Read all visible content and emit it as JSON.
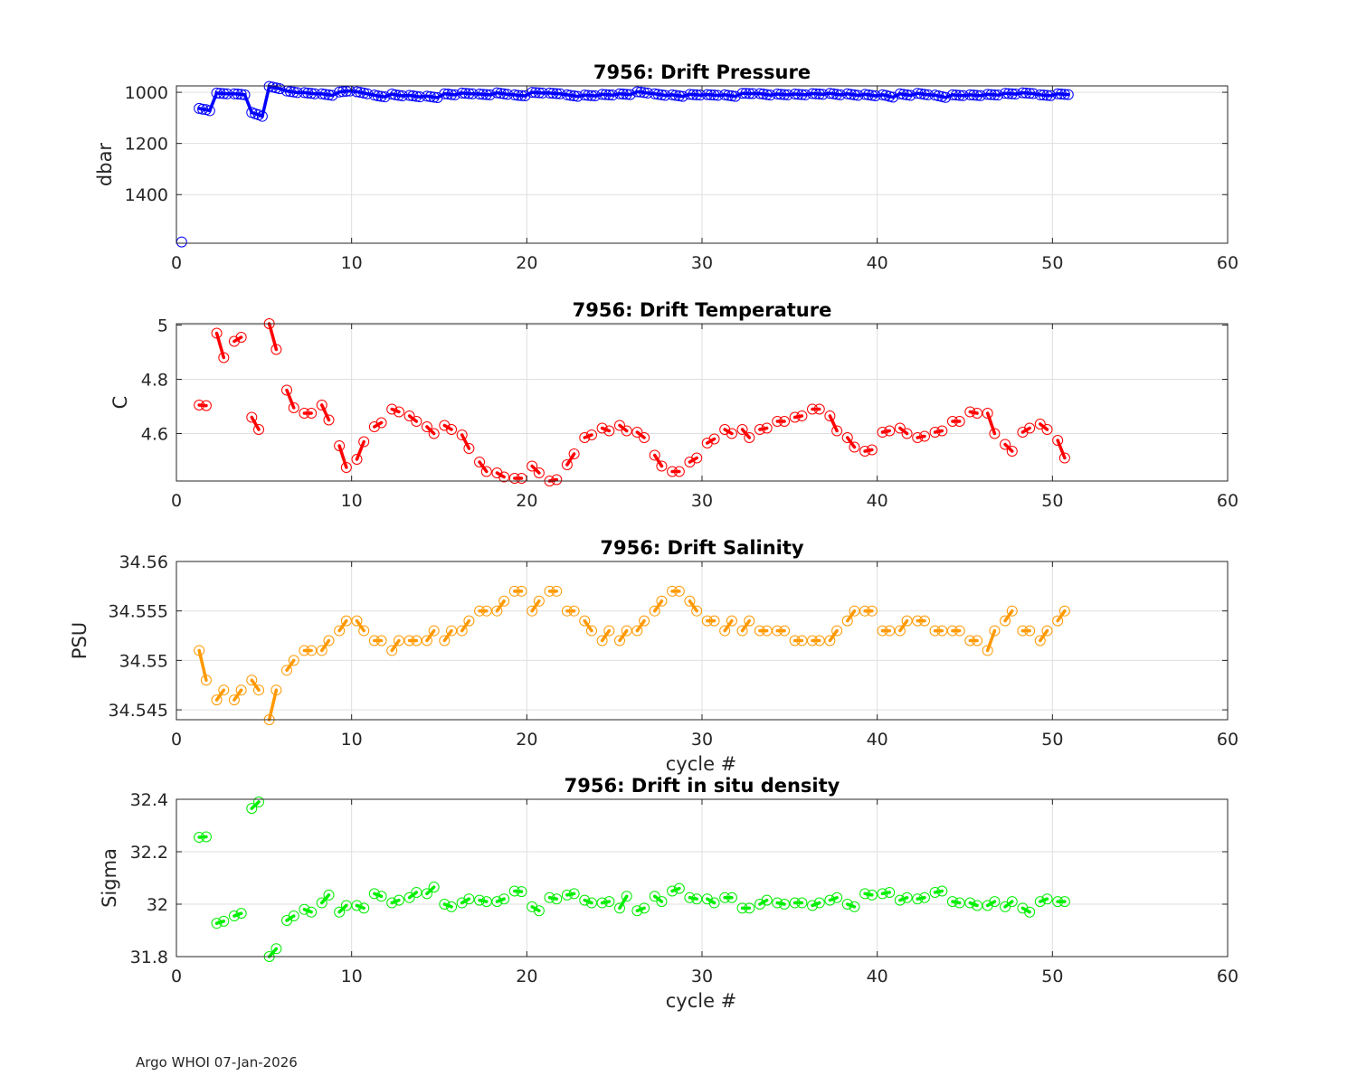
{
  "footer": {
    "text": "Argo WHOI 07-Jan-2026"
  },
  "chart_data": [
    {
      "type": "scatter",
      "title": "7956: Drift Pressure",
      "ylabel": "dbar",
      "xlabel": "",
      "color": "#0000ff",
      "y_reversed": true,
      "xlim": [
        0,
        60
      ],
      "ylim": [
        975,
        1590
      ],
      "xticks": [
        0,
        10,
        20,
        30,
        40,
        50,
        60
      ],
      "yticks": [
        1000,
        1200,
        1400
      ],
      "grid": true,
      "x": [
        0.3,
        1.3,
        1.5,
        1.7,
        1.9,
        2.3,
        2.5,
        2.7,
        2.9,
        3.3,
        3.5,
        3.7,
        3.9,
        4.3,
        4.5,
        4.7,
        4.9,
        5.3,
        5.5,
        5.7,
        5.9,
        6.3,
        6.5,
        6.7,
        6.9,
        7.3,
        7.5,
        7.7,
        7.9,
        8.3,
        8.5,
        8.7,
        8.9,
        9.3,
        9.5,
        9.7,
        9.9,
        10.3,
        10.5,
        10.7,
        10.9,
        11.3,
        11.5,
        11.7,
        11.9,
        12.3,
        12.5,
        12.7,
        12.9,
        13.3,
        13.5,
        13.7,
        13.9,
        14.3,
        14.5,
        14.7,
        14.9,
        15.3,
        15.5,
        15.7,
        15.9,
        16.3,
        16.5,
        16.7,
        16.9,
        17.3,
        17.5,
        17.7,
        17.9,
        18.3,
        18.5,
        18.7,
        18.9,
        19.3,
        19.5,
        19.7,
        19.9,
        20.3,
        20.5,
        20.7,
        20.9,
        21.3,
        21.5,
        21.7,
        21.9,
        22.3,
        22.5,
        22.7,
        22.9,
        23.3,
        23.5,
        23.7,
        23.9,
        24.3,
        24.5,
        24.7,
        24.9,
        25.3,
        25.5,
        25.7,
        25.9,
        26.3,
        26.5,
        26.7,
        26.9,
        27.3,
        27.5,
        27.7,
        27.9,
        28.3,
        28.5,
        28.7,
        28.9,
        29.3,
        29.5,
        29.7,
        29.9,
        30.3,
        30.5,
        30.7,
        30.9,
        31.3,
        31.5,
        31.7,
        31.9,
        32.3,
        32.5,
        32.7,
        32.9,
        33.3,
        33.5,
        33.7,
        33.9,
        34.3,
        34.5,
        34.7,
        34.9,
        35.3,
        35.5,
        35.7,
        35.9,
        36.3,
        36.5,
        36.7,
        36.9,
        37.3,
        37.5,
        37.7,
        37.9,
        38.3,
        38.5,
        38.7,
        38.9,
        39.3,
        39.5,
        39.7,
        39.9,
        40.3,
        40.5,
        40.7,
        40.9,
        41.3,
        41.5,
        41.7,
        41.9,
        42.3,
        42.5,
        42.7,
        42.9,
        43.3,
        43.5,
        43.7,
        43.9,
        44.3,
        44.5,
        44.7,
        44.9,
        45.3,
        45.5,
        45.7,
        45.9,
        46.3,
        46.5,
        46.7,
        46.9,
        47.3,
        47.5,
        47.7,
        47.9,
        48.3,
        48.5,
        48.7,
        48.9,
        49.3,
        49.5,
        49.7,
        49.9,
        50.3,
        50.5,
        50.7,
        50.9
      ],
      "y": [
        1585,
        1063,
        1066,
        1068,
        1072,
        1003,
        1004,
        1005,
        1006,
        1006,
        1007,
        1008,
        1010,
        1079,
        1084,
        1088,
        1094,
        977,
        980,
        983,
        986,
        995,
        997,
        999,
        1001,
        1001,
        1003,
        1004,
        1006,
        1006,
        1008,
        1010,
        1012,
        999,
        997,
        996,
        995,
        998,
        1000,
        1003,
        1006,
        1011,
        1014,
        1016,
        1018,
        1007,
        1010,
        1012,
        1014,
        1012,
        1014,
        1016,
        1018,
        1015,
        1017,
        1019,
        1021,
        1006,
        1007,
        1009,
        1010,
        1003,
        1004,
        1005,
        1006,
        1007,
        1008,
        1009,
        1010,
        1002,
        1004,
        1006,
        1008,
        1010,
        1012,
        1013,
        1014,
        1000,
        1001,
        1002,
        1003,
        1003,
        1004,
        1005,
        1006,
        1010,
        1012,
        1014,
        1016,
        1011,
        1012,
        1013,
        1014,
        1008,
        1009,
        1010,
        1011,
        1006,
        1007,
        1008,
        1009,
        998,
        999,
        1001,
        1003,
        1006,
        1008,
        1010,
        1012,
        1010,
        1012,
        1014,
        1016,
        1008,
        1009,
        1010,
        1011,
        1009,
        1010,
        1011,
        1012,
        1010,
        1012,
        1014,
        1016,
        1004,
        1004,
        1005,
        1005,
        1005,
        1007,
        1009,
        1011,
        1007,
        1008,
        1009,
        1010,
        1007,
        1008,
        1009,
        1010,
        1005,
        1006,
        1007,
        1008,
        1004,
        1006,
        1008,
        1010,
        1006,
        1008,
        1010,
        1012,
        1008,
        1010,
        1012,
        1014,
        1010,
        1012,
        1016,
        1019,
        1006,
        1008,
        1010,
        1012,
        1004,
        1006,
        1008,
        1010,
        1011,
        1014,
        1017,
        1020,
        1010,
        1011,
        1012,
        1013,
        1010,
        1011,
        1012,
        1013,
        1008,
        1009,
        1010,
        1011,
        1004,
        1005,
        1006,
        1007,
        1002,
        1003,
        1004,
        1005,
        1010,
        1011,
        1012,
        1013,
        1006,
        1007,
        1008,
        1009
      ]
    },
    {
      "type": "scatter",
      "title": "7956: Drift Temperature",
      "ylabel": "C",
      "xlabel": "",
      "color": "#ff0000",
      "xlim": [
        0,
        60
      ],
      "ylim": [
        4.425,
        5.005
      ],
      "xticks": [
        0,
        10,
        20,
        30,
        40,
        50,
        60
      ],
      "yticks": [
        4.6,
        4.8,
        5
      ],
      "grid": true,
      "x": [
        1.3,
        1.7,
        2.3,
        2.7,
        3.3,
        3.7,
        4.3,
        4.7,
        5.3,
        5.7,
        6.3,
        6.7,
        7.3,
        7.7,
        8.3,
        8.7,
        9.3,
        9.7,
        10.3,
        10.7,
        11.3,
        11.7,
        12.3,
        12.7,
        13.3,
        13.7,
        14.3,
        14.7,
        15.3,
        15.7,
        16.3,
        16.7,
        17.3,
        17.7,
        18.3,
        18.7,
        19.3,
        19.7,
        20.3,
        20.7,
        21.3,
        21.7,
        22.3,
        22.7,
        23.3,
        23.7,
        24.3,
        24.7,
        25.3,
        25.7,
        26.3,
        26.7,
        27.3,
        27.7,
        28.3,
        28.7,
        29.3,
        29.7,
        30.3,
        30.7,
        31.3,
        31.7,
        32.3,
        32.7,
        33.3,
        33.7,
        34.3,
        34.7,
        35.3,
        35.7,
        36.3,
        36.7,
        37.3,
        37.7,
        38.3,
        38.7,
        39.3,
        39.7,
        40.3,
        40.7,
        41.3,
        41.7,
        42.3,
        42.7,
        43.3,
        43.7,
        44.3,
        44.7,
        45.3,
        45.7,
        46.3,
        46.7,
        47.3,
        47.7,
        48.3,
        48.7,
        49.3,
        49.7,
        50.3,
        50.7
      ],
      "y": [
        4.705,
        4.703,
        4.97,
        4.88,
        4.94,
        4.955,
        4.66,
        4.615,
        5.005,
        4.91,
        4.76,
        4.695,
        4.675,
        4.675,
        4.705,
        4.65,
        4.555,
        4.475,
        4.505,
        4.57,
        4.625,
        4.64,
        4.69,
        4.68,
        4.665,
        4.645,
        4.625,
        4.6,
        4.63,
        4.615,
        4.595,
        4.545,
        4.495,
        4.46,
        4.455,
        4.44,
        4.435,
        4.435,
        4.48,
        4.455,
        4.425,
        4.43,
        4.485,
        4.525,
        4.585,
        4.595,
        4.62,
        4.61,
        4.63,
        4.61,
        4.605,
        4.585,
        4.52,
        4.48,
        4.46,
        4.46,
        4.495,
        4.51,
        4.565,
        4.58,
        4.615,
        4.6,
        4.615,
        4.585,
        4.615,
        4.62,
        4.645,
        4.645,
        4.66,
        4.665,
        4.69,
        4.69,
        4.665,
        4.61,
        4.585,
        4.55,
        4.535,
        4.54,
        4.605,
        4.61,
        4.62,
        4.6,
        4.585,
        4.59,
        4.605,
        4.61,
        4.645,
        4.645,
        4.68,
        4.675,
        4.675,
        4.6,
        4.56,
        4.535,
        4.605,
        4.62,
        4.635,
        4.615,
        4.575,
        4.51
      ]
    },
    {
      "type": "scatter",
      "title": "7956: Drift Salinity",
      "ylabel": "PSU",
      "xlabel": "cycle #",
      "color": "#ff9900",
      "xlim": [
        0,
        60
      ],
      "ylim": [
        34.544,
        34.56
      ],
      "xticks": [
        0,
        10,
        20,
        30,
        40,
        50,
        60
      ],
      "yticks": [
        34.545,
        34.55,
        34.555,
        34.56
      ],
      "grid": true,
      "x": [
        1.3,
        1.7,
        2.3,
        2.7,
        3.3,
        3.7,
        4.3,
        4.7,
        5.3,
        5.7,
        6.3,
        6.7,
        7.3,
        7.7,
        8.3,
        8.7,
        9.3,
        9.7,
        10.3,
        10.7,
        11.3,
        11.7,
        12.3,
        12.7,
        13.3,
        13.7,
        14.3,
        14.7,
        15.3,
        15.7,
        16.3,
        16.7,
        17.3,
        17.7,
        18.3,
        18.7,
        19.3,
        19.7,
        20.3,
        20.7,
        21.3,
        21.7,
        22.3,
        22.7,
        23.3,
        23.7,
        24.3,
        24.7,
        25.3,
        25.7,
        26.3,
        26.7,
        27.3,
        27.7,
        28.3,
        28.7,
        29.3,
        29.7,
        30.3,
        30.7,
        31.3,
        31.7,
        32.3,
        32.7,
        33.3,
        33.7,
        34.3,
        34.7,
        35.3,
        35.7,
        36.3,
        36.7,
        37.3,
        37.7,
        38.3,
        38.7,
        39.3,
        39.7,
        40.3,
        40.7,
        41.3,
        41.7,
        42.3,
        42.7,
        43.3,
        43.7,
        44.3,
        44.7,
        45.3,
        45.7,
        46.3,
        46.7,
        47.3,
        47.7,
        48.3,
        48.7,
        49.3,
        49.7,
        50.3,
        50.7
      ],
      "y": [
        34.551,
        34.548,
        34.546,
        34.547,
        34.546,
        34.547,
        34.548,
        34.547,
        34.544,
        34.547,
        34.549,
        34.55,
        34.551,
        34.551,
        34.551,
        34.552,
        34.553,
        34.554,
        34.554,
        34.553,
        34.552,
        34.552,
        34.551,
        34.552,
        34.552,
        34.552,
        34.552,
        34.553,
        34.552,
        34.553,
        34.553,
        34.554,
        34.555,
        34.555,
        34.555,
        34.556,
        34.557,
        34.557,
        34.555,
        34.556,
        34.557,
        34.557,
        34.555,
        34.555,
        34.554,
        34.553,
        34.552,
        34.553,
        34.552,
        34.553,
        34.553,
        34.554,
        34.555,
        34.556,
        34.557,
        34.557,
        34.556,
        34.555,
        34.554,
        34.554,
        34.553,
        34.554,
        34.553,
        34.554,
        34.553,
        34.553,
        34.553,
        34.553,
        34.552,
        34.552,
        34.552,
        34.552,
        34.552,
        34.553,
        34.554,
        34.555,
        34.555,
        34.555,
        34.553,
        34.553,
        34.553,
        34.554,
        34.554,
        34.554,
        34.553,
        34.553,
        34.553,
        34.553,
        34.552,
        34.552,
        34.551,
        34.553,
        34.554,
        34.555,
        34.553,
        34.553,
        34.552,
        34.553,
        34.554,
        34.555
      ]
    },
    {
      "type": "scatter",
      "title": "7956: Drift in situ density",
      "ylabel": "Sigma",
      "xlabel": "cycle #",
      "color": "#00ee00",
      "xlim": [
        0,
        60
      ],
      "ylim": [
        31.8,
        32.4
      ],
      "xticks": [
        0,
        10,
        20,
        30,
        40,
        50,
        60
      ],
      "yticks": [
        31.8,
        32,
        32.2,
        32.4
      ],
      "grid": true,
      "x": [
        1.3,
        1.7,
        2.3,
        2.7,
        3.3,
        3.7,
        4.3,
        4.7,
        5.3,
        5.7,
        6.3,
        6.7,
        7.3,
        7.7,
        8.3,
        8.7,
        9.3,
        9.7,
        10.3,
        10.7,
        11.3,
        11.7,
        12.3,
        12.7,
        13.3,
        13.7,
        14.3,
        14.7,
        15.3,
        15.7,
        16.3,
        16.7,
        17.3,
        17.7,
        18.3,
        18.7,
        19.3,
        19.7,
        20.3,
        20.7,
        21.3,
        21.7,
        22.3,
        22.7,
        23.3,
        23.7,
        24.3,
        24.7,
        25.3,
        25.7,
        26.3,
        26.7,
        27.3,
        27.7,
        28.3,
        28.7,
        29.3,
        29.7,
        30.3,
        30.7,
        31.3,
        31.7,
        32.3,
        32.7,
        33.3,
        33.7,
        34.3,
        34.7,
        35.3,
        35.7,
        36.3,
        36.7,
        37.3,
        37.7,
        38.3,
        38.7,
        39.3,
        39.7,
        40.3,
        40.7,
        41.3,
        41.7,
        42.3,
        42.7,
        43.3,
        43.7,
        44.3,
        44.7,
        45.3,
        45.7,
        46.3,
        46.7,
        47.3,
        47.7,
        48.3,
        48.7,
        49.3,
        49.7,
        50.3,
        50.7
      ],
      "y": [
        32.255,
        32.257,
        31.927,
        31.935,
        31.955,
        31.965,
        32.365,
        32.39,
        31.8,
        31.83,
        31.938,
        31.955,
        31.98,
        31.97,
        32.005,
        32.035,
        31.97,
        31.995,
        31.995,
        31.985,
        32.04,
        32.03,
        32.005,
        32.015,
        32.025,
        32.045,
        32.04,
        32.065,
        32.0,
        31.99,
        32.005,
        32.02,
        32.015,
        32.01,
        32.01,
        32.02,
        32.05,
        32.048,
        31.99,
        31.975,
        32.025,
        32.02,
        32.035,
        32.04,
        32.015,
        32.005,
        32.005,
        32.01,
        31.985,
        32.03,
        31.975,
        31.985,
        32.03,
        32.01,
        32.05,
        32.06,
        32.025,
        32.02,
        32.02,
        32.005,
        32.025,
        32.025,
        31.985,
        31.985,
        32.0,
        32.015,
        32.005,
        32.0,
        32.005,
        32.005,
        31.995,
        32.005,
        32.015,
        32.025,
        32.0,
        31.99,
        32.04,
        32.035,
        32.04,
        32.045,
        32.015,
        32.025,
        32.02,
        32.025,
        32.045,
        32.05,
        32.01,
        32.005,
        32.005,
        31.995,
        31.995,
        32.01,
        31.99,
        32.01,
        31.985,
        31.97,
        32.01,
        32.02,
        32.01,
        32.01
      ]
    }
  ]
}
